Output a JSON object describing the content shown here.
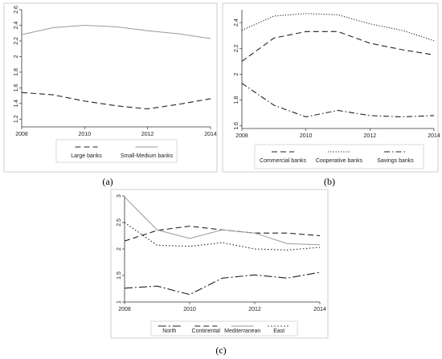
{
  "chart_data": [
    {
      "panel": "(a)",
      "type": "line",
      "x": [
        2008,
        2009,
        2010,
        2011,
        2012,
        2013,
        2014
      ],
      "xticks": [
        2008,
        2010,
        2012,
        2014
      ],
      "ylim": [
        1.1,
        2.6
      ],
      "yticks": [
        1.2,
        1.4,
        1.6,
        1.8,
        2,
        2.2,
        2.4,
        2.6
      ],
      "ytick_labels": [
        "1.2",
        "1.4",
        "1.6",
        "1.8",
        "2",
        "2.2",
        "2.4",
        "2.6"
      ],
      "grid": false,
      "legend_position": "bottom",
      "series": [
        {
          "name": "Large banks",
          "style": "dashed",
          "values": [
            1.54,
            1.51,
            1.43,
            1.37,
            1.33,
            1.39,
            1.46
          ]
        },
        {
          "name": "Small-Medium banks",
          "style": "solid-gray",
          "values": [
            2.28,
            2.37,
            2.4,
            2.38,
            2.33,
            2.29,
            2.23
          ]
        }
      ]
    },
    {
      "panel": "(b)",
      "type": "line",
      "x": [
        2008,
        2009,
        2010,
        2011,
        2012,
        2013,
        2014
      ],
      "xticks": [
        2008,
        2010,
        2012,
        2014
      ],
      "ylim": [
        1.58,
        2.5
      ],
      "yticks": [
        1.6,
        1.8,
        2,
        2.2,
        2.4
      ],
      "ytick_labels": [
        "1.6",
        "1.8",
        "2",
        "2.2",
        "2.4"
      ],
      "grid": false,
      "legend_position": "bottom",
      "series": [
        {
          "name": "Commercial banks",
          "style": "dashed",
          "values": [
            2.1,
            2.28,
            2.33,
            2.33,
            2.24,
            2.19,
            2.15
          ]
        },
        {
          "name": "Cooperative banks",
          "style": "dotted",
          "values": [
            2.34,
            2.45,
            2.47,
            2.46,
            2.39,
            2.34,
            2.26
          ]
        },
        {
          "name": "Savings banks",
          "style": "dashdot",
          "values": [
            1.93,
            1.76,
            1.67,
            1.72,
            1.68,
            1.67,
            1.68
          ]
        }
      ]
    },
    {
      "panel": "(c)",
      "type": "line",
      "x": [
        2008,
        2009,
        2010,
        2011,
        2012,
        2013,
        2014
      ],
      "xticks": [
        2008,
        2010,
        2012,
        2014
      ],
      "ylim": [
        1,
        3
      ],
      "yticks": [
        1,
        1.5,
        2,
        2.5,
        3
      ],
      "ytick_labels": [
        "1",
        "1.5",
        "2",
        "2.5",
        "3"
      ],
      "grid": false,
      "legend_position": "bottom",
      "series": [
        {
          "name": "North",
          "style": "longdashdot",
          "values": [
            1.26,
            1.3,
            1.14,
            1.45,
            1.51,
            1.45,
            1.56
          ]
        },
        {
          "name": "Continental",
          "style": "dashed",
          "values": [
            2.15,
            2.35,
            2.43,
            2.36,
            2.3,
            2.3,
            2.25
          ]
        },
        {
          "name": "Mediterranean",
          "style": "solid-gray",
          "values": [
            2.98,
            2.36,
            2.2,
            2.36,
            2.3,
            2.1,
            2.08
          ]
        },
        {
          "name": "East",
          "style": "dotdash",
          "values": [
            2.5,
            2.07,
            2.05,
            2.12,
            2.0,
            1.98,
            2.03
          ]
        }
      ]
    }
  ],
  "captions": [
    "(a)",
    "(b)",
    "(c)"
  ]
}
